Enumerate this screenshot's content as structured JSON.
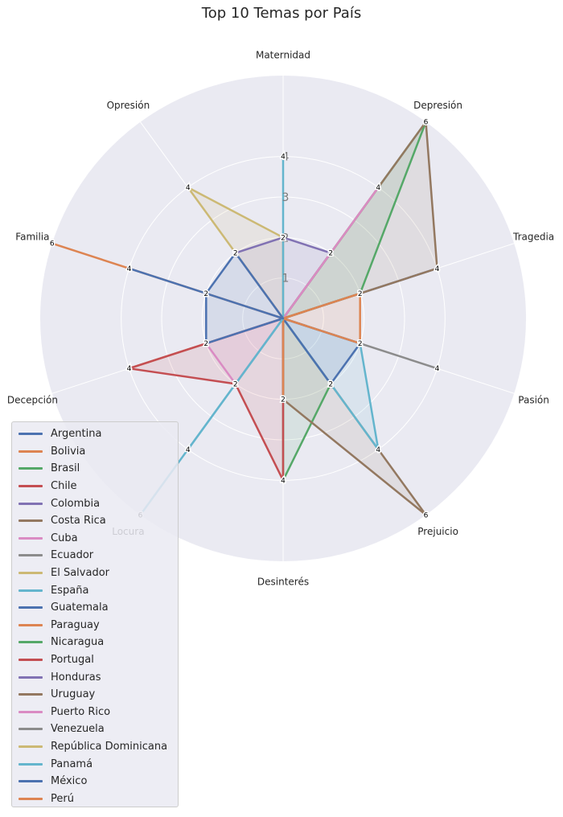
{
  "chart_data": {
    "type": "radar",
    "title": "Top 10 Temas por País",
    "categories": [
      "Maternidad",
      "Depresión",
      "Tragedia",
      "Pasión",
      "Prejuicio",
      "Desinterés",
      "Locura",
      "Decepción",
      "Familia",
      "Opresión"
    ],
    "radial_ticks": [
      "1",
      "2",
      "3",
      "4"
    ],
    "rlim": [
      0,
      6
    ],
    "grid": true,
    "legend_position": "lower-left",
    "series": [
      {
        "name": "Argentina",
        "color": "#4c72b0",
        "values": [
          0,
          0,
          4,
          0,
          0,
          0,
          0,
          0,
          0,
          0
        ]
      },
      {
        "name": "Bolivia",
        "color": "#dd8452",
        "values": [
          0,
          0,
          0,
          0,
          0,
          0,
          0,
          4,
          0,
          0
        ]
      },
      {
        "name": "Brasil",
        "color": "#55a868",
        "values": [
          0,
          6,
          2,
          0,
          2,
          4,
          0,
          0,
          0,
          0
        ]
      },
      {
        "name": "Chile",
        "color": "#c44e52",
        "values": [
          0,
          0,
          0,
          0,
          0,
          4,
          2,
          4,
          0,
          0
        ]
      },
      {
        "name": "Colombia",
        "color": "#8172b3",
        "values": [
          2,
          2,
          0,
          0,
          0,
          2,
          0,
          0,
          0,
          2
        ]
      },
      {
        "name": "Costa Rica",
        "color": "#937860",
        "values": [
          0,
          6,
          4,
          0,
          6,
          2,
          0,
          0,
          0,
          0
        ]
      },
      {
        "name": "Cuba",
        "color": "#da8bc3",
        "values": [
          0,
          4,
          0,
          0,
          0,
          0,
          2,
          2,
          0,
          0
        ]
      },
      {
        "name": "Ecuador",
        "color": "#8c8c8c",
        "values": [
          0,
          0,
          0,
          4,
          0,
          0,
          0,
          0,
          0,
          0
        ]
      },
      {
        "name": "El Salvador",
        "color": "#ccb974",
        "values": [
          2,
          0,
          0,
          0,
          0,
          0,
          0,
          0,
          0,
          4
        ]
      },
      {
        "name": "España",
        "color": "#64b5cd",
        "values": [
          4,
          0,
          0,
          2,
          4,
          0,
          4,
          0,
          0,
          0
        ]
      },
      {
        "name": "Guatemala",
        "color": "#4c72b0",
        "values": [
          0,
          0,
          0,
          2,
          2,
          0,
          0,
          2,
          2,
          2
        ]
      },
      {
        "name": "Paraguay",
        "color": "#dd8452",
        "values": [
          0,
          0,
          2,
          2,
          0,
          2,
          0,
          0,
          6,
          0
        ]
      },
      {
        "name": "Nicaragua",
        "color": "#55a868",
        "values": [
          0,
          0,
          0,
          0,
          0,
          0,
          0,
          0,
          0,
          0
        ]
      },
      {
        "name": "Portugal",
        "color": "#c44e52",
        "values": [
          0,
          0,
          0,
          0,
          0,
          0,
          0,
          0,
          0,
          0
        ]
      },
      {
        "name": "Honduras",
        "color": "#8172b3",
        "values": [
          0,
          0,
          0,
          0,
          0,
          0,
          0,
          0,
          0,
          0
        ]
      },
      {
        "name": "Uruguay",
        "color": "#937860",
        "values": [
          0,
          0,
          0,
          0,
          0,
          0,
          0,
          0,
          0,
          0
        ]
      },
      {
        "name": "Puerto Rico",
        "color": "#da8bc3",
        "values": [
          0,
          0,
          0,
          0,
          0,
          0,
          0,
          0,
          0,
          0
        ]
      },
      {
        "name": "Venezuela",
        "color": "#8c8c8c",
        "values": [
          0,
          0,
          0,
          0,
          0,
          0,
          0,
          0,
          0,
          0
        ]
      },
      {
        "name": "República Dominicana",
        "color": "#ccb974",
        "values": [
          0,
          0,
          0,
          0,
          0,
          0,
          0,
          0,
          0,
          0
        ]
      },
      {
        "name": "Panamá",
        "color": "#64b5cd",
        "values": [
          0,
          0,
          0,
          0,
          0,
          0,
          6,
          0,
          0,
          0
        ]
      },
      {
        "name": "México",
        "color": "#4c72b0",
        "values": [
          0,
          0,
          0,
          0,
          0,
          0,
          0,
          0,
          4,
          0
        ]
      },
      {
        "name": "Perú",
        "color": "#dd8452",
        "values": [
          0,
          0,
          0,
          0,
          0,
          0,
          0,
          0,
          0,
          0
        ]
      }
    ]
  }
}
